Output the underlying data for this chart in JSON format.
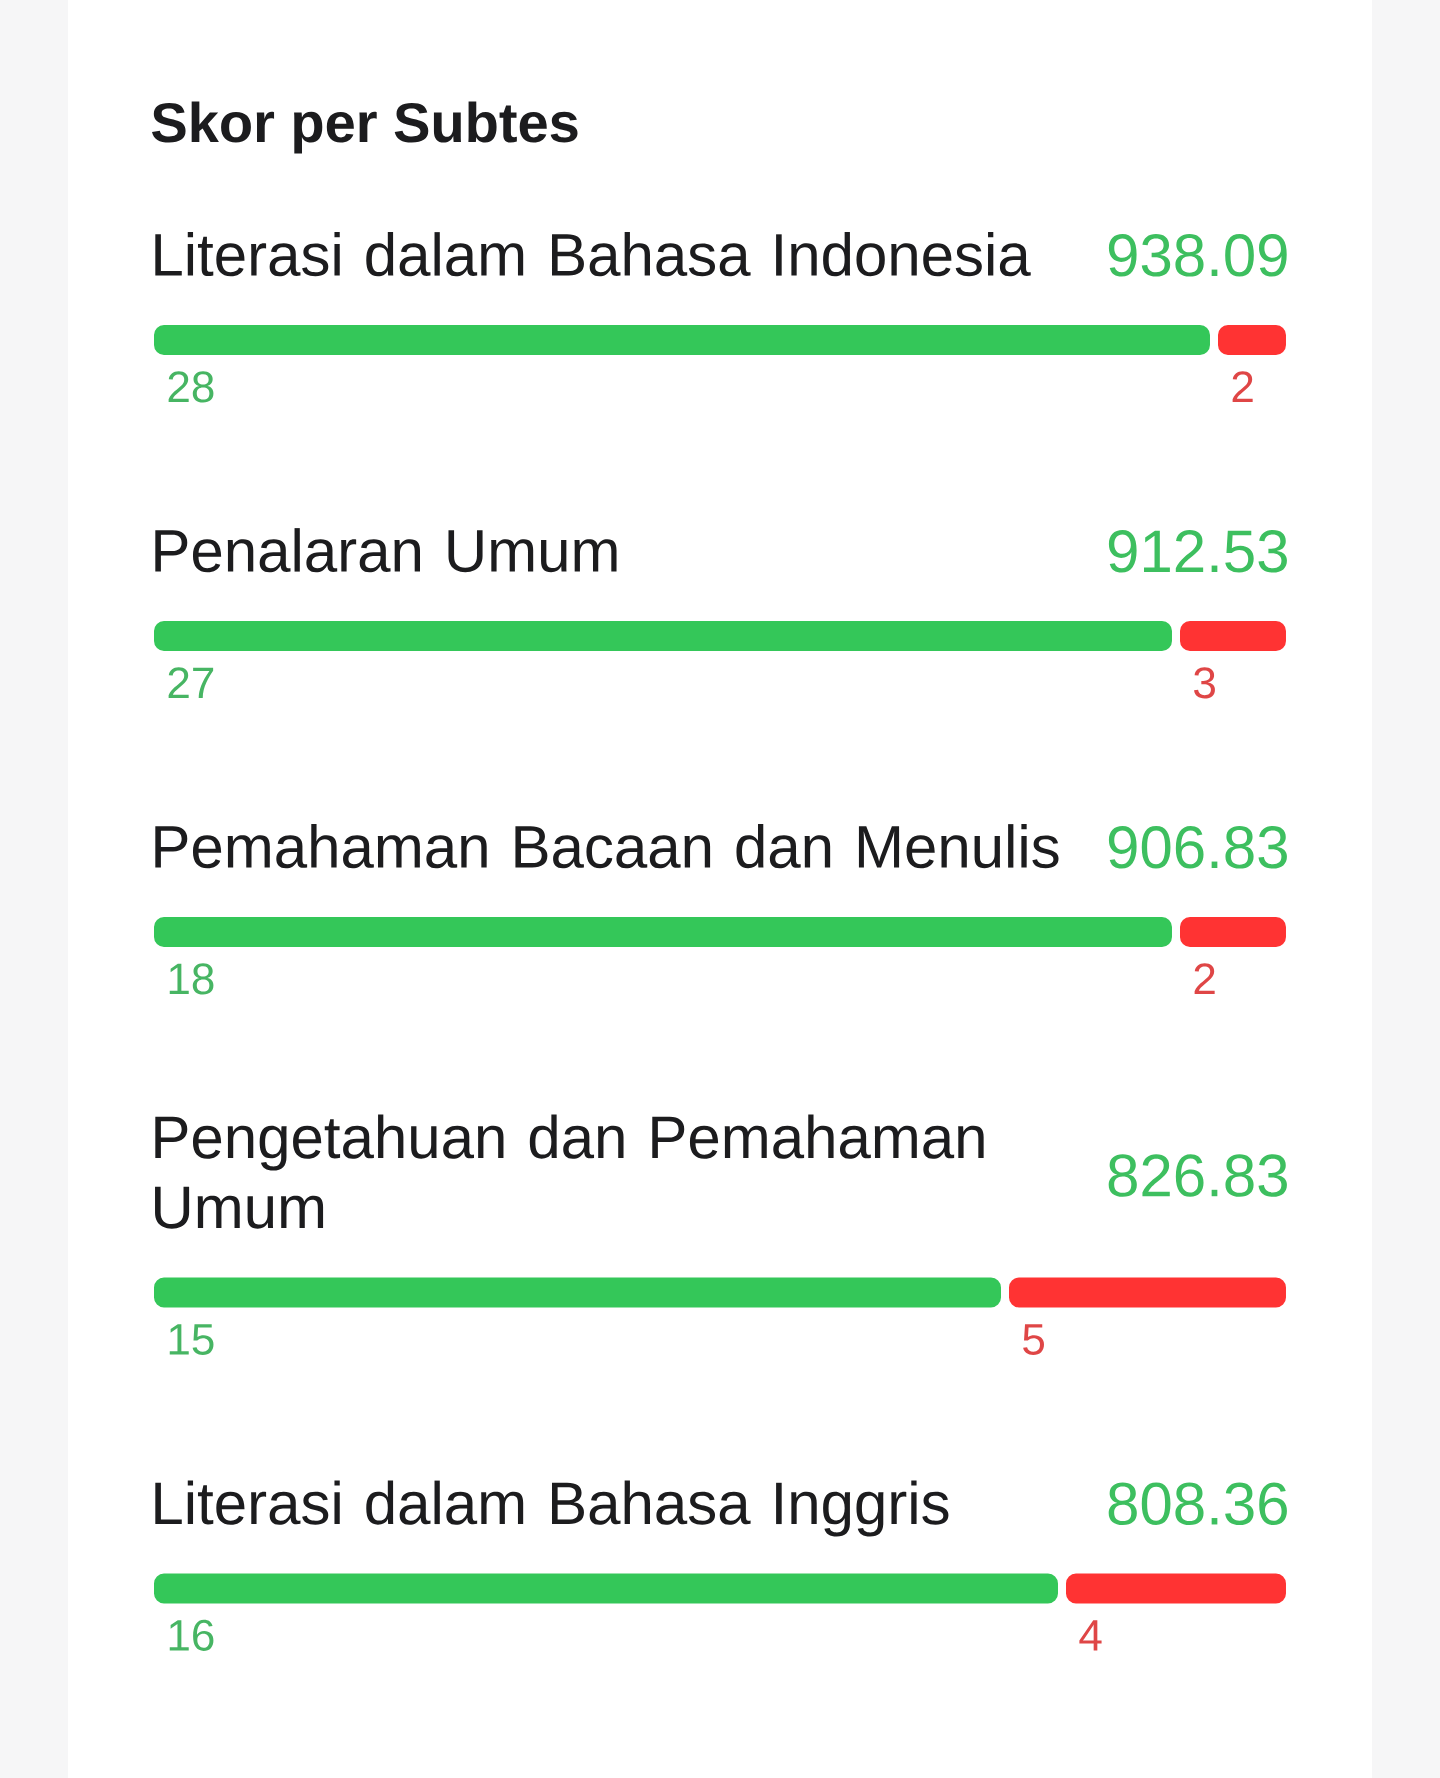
{
  "chart_data": [
    {
      "type": "bar",
      "orientation": "horizontal",
      "stacked": true,
      "title": "Skor per Subtes",
      "categories": [
        "Literasi dalam Bahasa Indonesia"
      ],
      "tick_labels": "y",
      "data_labels": true,
      "series": [
        {
          "color": "#34c759",
          "values": [
            28
          ]
        },
        {
          "color": "#ff3333",
          "values": [
            2
          ]
        }
      ],
      "annotations": [
        "938.09"
      ]
    },
    {
      "type": "bar",
      "orientation": "horizontal",
      "stacked": true,
      "categories": [
        "Penalaran Umum"
      ],
      "tick_labels": "y",
      "data_labels": true,
      "series": [
        {
          "color": "#34c759",
          "values": [
            27
          ]
        },
        {
          "color": "#ff3333",
          "values": [
            3
          ]
        }
      ],
      "annotations": [
        "912.53"
      ]
    },
    {
      "type": "bar",
      "orientation": "horizontal",
      "stacked": true,
      "categories": [
        "Pemahaman Bacaan dan Menulis"
      ],
      "tick_labels": "y",
      "data_labels": true,
      "series": [
        {
          "color": "#34c759",
          "values": [
            18
          ]
        },
        {
          "color": "#ff3333",
          "values": [
            2
          ]
        }
      ],
      "annotations": [
        "906.83"
      ]
    },
    {
      "type": "bar",
      "orientation": "horizontal",
      "stacked": true,
      "categories": [
        "Pengetahuan dan Pemahaman Umum"
      ],
      "tick_labels": "y",
      "data_labels": true,
      "series": [
        {
          "color": "#34c759",
          "values": [
            15
          ]
        },
        {
          "color": "#ff3333",
          "values": [
            5
          ]
        }
      ],
      "annotations": [
        "826.83"
      ]
    },
    {
      "type": "bar",
      "orientation": "horizontal",
      "stacked": true,
      "categories": [
        "Literasi dalam Bahasa Inggris"
      ],
      "tick_labels": "y",
      "data_labels": true,
      "series": [
        {
          "color": "#34c759",
          "values": [
            16
          ]
        },
        {
          "color": "#ff3333",
          "values": [
            4
          ]
        }
      ],
      "annotations": [
        "808.36"
      ]
    }
  ]
}
